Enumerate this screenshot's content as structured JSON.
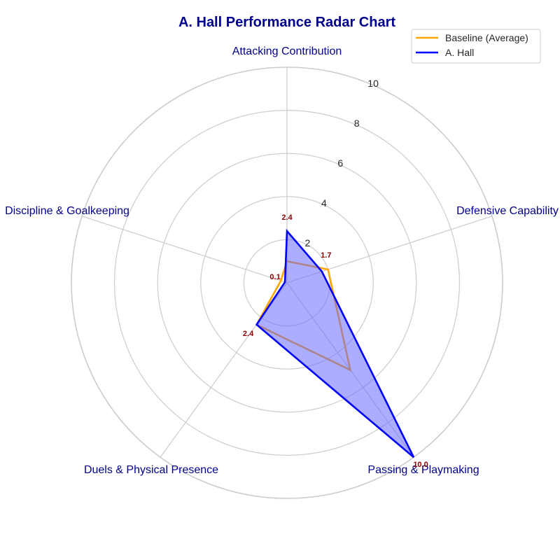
{
  "chart_data": {
    "type": "radar",
    "title": "A. Hall Performance Radar Chart",
    "categories": [
      "Attacking Contribution",
      "Defensive Capability",
      "Passing & Playmaking",
      "Duels & Physical Presence",
      "Discipline & Goalkeeping"
    ],
    "rlim": [
      0,
      10
    ],
    "rticks": [
      2,
      4,
      6,
      8,
      10
    ],
    "grid": true,
    "legend_position": "top-right",
    "series": [
      {
        "name": "Baseline (Average)",
        "values": [
          1.0,
          2.0,
          5.0,
          2.4,
          0.3
        ],
        "color": "#ffa500",
        "fill": false
      },
      {
        "name": "A. Hall",
        "values": [
          2.4,
          1.7,
          10.0,
          2.4,
          0.1
        ],
        "color": "#0000ff",
        "fill": true,
        "fill_color": "#6a6aff"
      }
    ],
    "value_labels": [
      "2.4",
      "1.7",
      "10.0",
      "2.4",
      "0.1"
    ]
  }
}
